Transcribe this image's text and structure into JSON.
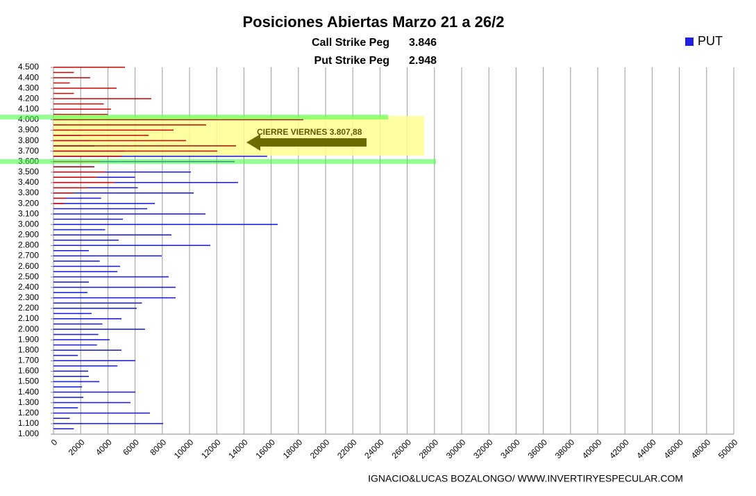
{
  "chart_data": {
    "type": "barh",
    "title": "Posiciones Abiertas Marzo 21 a 26/2",
    "subtitle_lines": [
      {
        "label": "Call Strike Peg",
        "value": "3.846"
      },
      {
        "label": "Put Strike Peg",
        "value": "2.948"
      }
    ],
    "annotation": "CIERRE VIERNES 3.807,88",
    "source": "IGNACIO&LUCAS BOZALONGO/ WWW.INVERTIRYESPECULAR.COM",
    "categories": [
      1000,
      1050,
      1100,
      1150,
      1200,
      1250,
      1300,
      1350,
      1400,
      1450,
      1500,
      1550,
      1600,
      1650,
      1700,
      1750,
      1800,
      1850,
      1900,
      1950,
      2000,
      2050,
      2100,
      2150,
      2200,
      2250,
      2300,
      2350,
      2400,
      2450,
      2500,
      2550,
      2600,
      2650,
      2700,
      2750,
      2800,
      2850,
      2900,
      2950,
      3000,
      3050,
      3100,
      3150,
      3200,
      3250,
      3300,
      3350,
      3400,
      3450,
      3500,
      3550,
      3600,
      3650,
      3700,
      3750,
      3800,
      3850,
      3900,
      3950,
      4000,
      4050,
      4100,
      4150,
      4200,
      4250,
      4300,
      4350,
      4400,
      4450,
      4500
    ],
    "series": [
      {
        "name": "PUT",
        "color": "#2020e0",
        "values": [
          null,
          1500,
          8060,
          1200,
          7090,
          1800,
          5660,
          2200,
          6020,
          2100,
          3370,
          2600,
          2550,
          4700,
          6020,
          1800,
          5000,
          3200,
          4130,
          3300,
          6730,
          3600,
          5000,
          2800,
          6120,
          6500,
          8980,
          2500,
          8980,
          2600,
          8470,
          4700,
          4900,
          3400,
          7960,
          2600,
          11530,
          4800,
          8670,
          3800,
          16480,
          5100,
          11170,
          6900,
          7450,
          3500,
          10310,
          6200,
          13570,
          6000,
          10100,
          3000,
          13320,
          15710,
          5260,
          3000,
          2700,
          2000,
          1200,
          900,
          700,
          500,
          null,
          null,
          null,
          null,
          null,
          null,
          null,
          null,
          null
        ]
      },
      {
        "color": "#d01010",
        "values": [
          null,
          null,
          null,
          null,
          null,
          null,
          null,
          null,
          null,
          null,
          null,
          null,
          null,
          null,
          null,
          null,
          null,
          null,
          null,
          null,
          null,
          null,
          null,
          null,
          null,
          null,
          null,
          null,
          null,
          null,
          null,
          null,
          null,
          null,
          null,
          null,
          null,
          null,
          null,
          null,
          null,
          null,
          null,
          null,
          800,
          900,
          1500,
          2500,
          4500,
          3200,
          3800,
          3000,
          3500,
          5000,
          12040,
          13420,
          9740,
          7000,
          8830,
          11220,
          18370,
          4000,
          4230,
          3700,
          7190,
          1500,
          4640,
          1200,
          2700,
          1500,
          5260
        ]
      }
    ],
    "ylim": [
      1000,
      4500
    ],
    "yticks": [
      {
        "value": 1000,
        "label": "1.000"
      },
      {
        "value": 1100,
        "label": "1.100"
      },
      {
        "value": 1200,
        "label": "1.200"
      },
      {
        "value": 1300,
        "label": "1.300"
      },
      {
        "value": 1400,
        "label": "1.400"
      },
      {
        "value": 1500,
        "label": "1.500"
      },
      {
        "value": 1600,
        "label": "1.600"
      },
      {
        "value": 1700,
        "label": "1.700"
      },
      {
        "value": 1800,
        "label": "1.800"
      },
      {
        "value": 1900,
        "label": "1.900"
      },
      {
        "value": 2000,
        "label": "2.000"
      },
      {
        "value": 2100,
        "label": "2.100"
      },
      {
        "value": 2200,
        "label": "2.200"
      },
      {
        "value": 2300,
        "label": "2.300"
      },
      {
        "value": 2400,
        "label": "2.400"
      },
      {
        "value": 2500,
        "label": "2.500"
      },
      {
        "value": 2600,
        "label": "2.600"
      },
      {
        "value": 2700,
        "label": "2.700"
      },
      {
        "value": 2800,
        "label": "2.800"
      },
      {
        "value": 2900,
        "label": "2.900"
      },
      {
        "value": 3000,
        "label": "3.000"
      },
      {
        "value": 3100,
        "label": "3.100"
      },
      {
        "value": 3200,
        "label": "3.200"
      },
      {
        "value": 3300,
        "label": "3.300"
      },
      {
        "value": 3400,
        "label": "3.400"
      },
      {
        "value": 3500,
        "label": "3.500"
      },
      {
        "value": 3600,
        "label": "3.600"
      },
      {
        "value": 3700,
        "label": "3.700"
      },
      {
        "value": 3800,
        "label": "3.800"
      },
      {
        "value": 3900,
        "label": "3.900"
      },
      {
        "value": 4000,
        "label": "4.000"
      },
      {
        "value": 4100,
        "label": "4.100"
      },
      {
        "value": 4200,
        "label": "4.200"
      },
      {
        "value": 4300,
        "label": "4.300"
      },
      {
        "value": 4400,
        "label": "4.400"
      },
      {
        "value": 4500,
        "label": "4.500"
      }
    ],
    "xlim": [
      0,
      50000
    ],
    "xticks": [
      0,
      2000,
      4000,
      6000,
      8000,
      10000,
      12000,
      14000,
      16000,
      18000,
      20000,
      22000,
      24000,
      26000,
      28000,
      30000,
      32000,
      34000,
      36000,
      38000,
      40000,
      42000,
      44000,
      46000,
      48000,
      50000
    ],
    "grid": true,
    "legend": "top-right"
  }
}
